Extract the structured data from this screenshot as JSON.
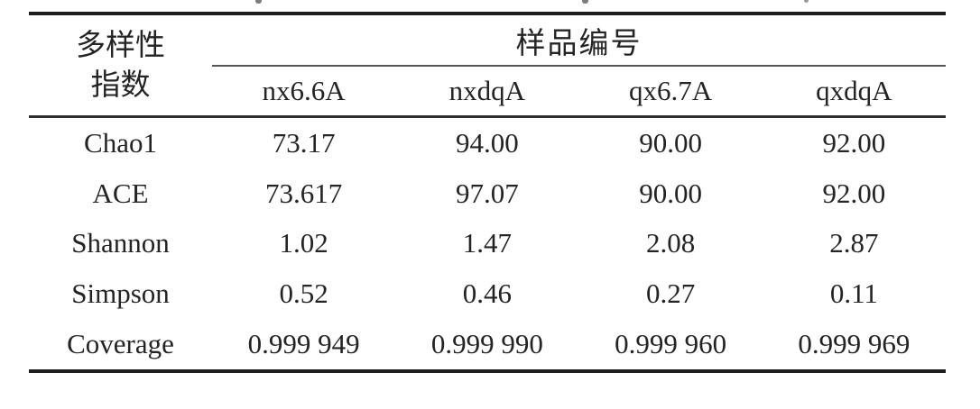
{
  "table": {
    "stub_header": {
      "line1": "多样性",
      "line2": "指数"
    },
    "group_header": "样品编号",
    "columns": [
      "nx6.6A",
      "nxdqA",
      "qx6.7A",
      "qxdqA"
    ],
    "rows": [
      {
        "label": "Chao1",
        "values": [
          "73.17",
          "94.00",
          "90.00",
          "92.00"
        ]
      },
      {
        "label": "ACE",
        "values": [
          "73.617",
          "97.07",
          "90.00",
          "92.00"
        ]
      },
      {
        "label": "Shannon",
        "values": [
          "1.02",
          "1.47",
          "2.08",
          "2.87"
        ]
      },
      {
        "label": "Simpson",
        "values": [
          "0.52",
          "0.46",
          "0.27",
          "0.11"
        ]
      },
      {
        "label": "Coverage",
        "values": [
          "0.999 949",
          "0.999 990",
          "0.999 960",
          "0.999 969"
        ]
      }
    ]
  },
  "colors": {
    "background": "#ffffff",
    "text": "#242424",
    "heavy_rule": "#1e1e1e",
    "light_rule": "#555555"
  }
}
